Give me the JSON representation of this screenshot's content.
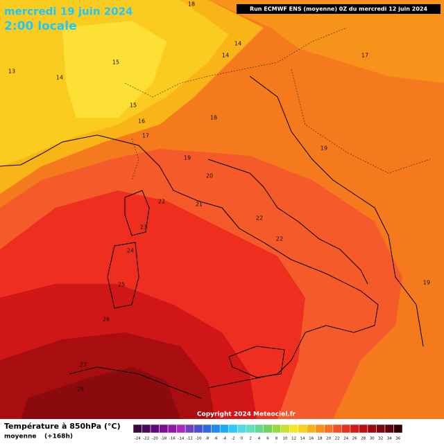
{
  "header": {
    "date": "mercredi 19 juin 2024",
    "time": "2:00 locale",
    "run": "Run ECMWF ENS (moyenne) 0Z du mercredi 12 juin 2024"
  },
  "map": {
    "contour_labels": [
      "18",
      "13",
      "14",
      "15",
      "14",
      "14",
      "17",
      "15",
      "16",
      "17",
      "18",
      "19",
      "19",
      "20",
      "21",
      "22",
      "22",
      "22",
      "23",
      "24",
      "25",
      "26",
      "27",
      "28",
      "19"
    ],
    "copyright": "Copyright 2024 Meteociel.fr"
  },
  "legend": {
    "title": "Température à 850hPa (°C)",
    "subtitle": "moyenne",
    "lead": "(+168h)",
    "ticks": [
      "-24",
      "-22",
      "-20",
      "-18",
      "-16",
      "-14",
      "-12",
      "-10",
      "-8",
      "-6",
      "-4",
      "-2",
      "0",
      "2",
      "4",
      "6",
      "8",
      "10",
      "12",
      "14",
      "16",
      "18",
      "20",
      "22",
      "24",
      "26",
      "28",
      "30",
      "32",
      "34",
      "36"
    ]
  }
}
